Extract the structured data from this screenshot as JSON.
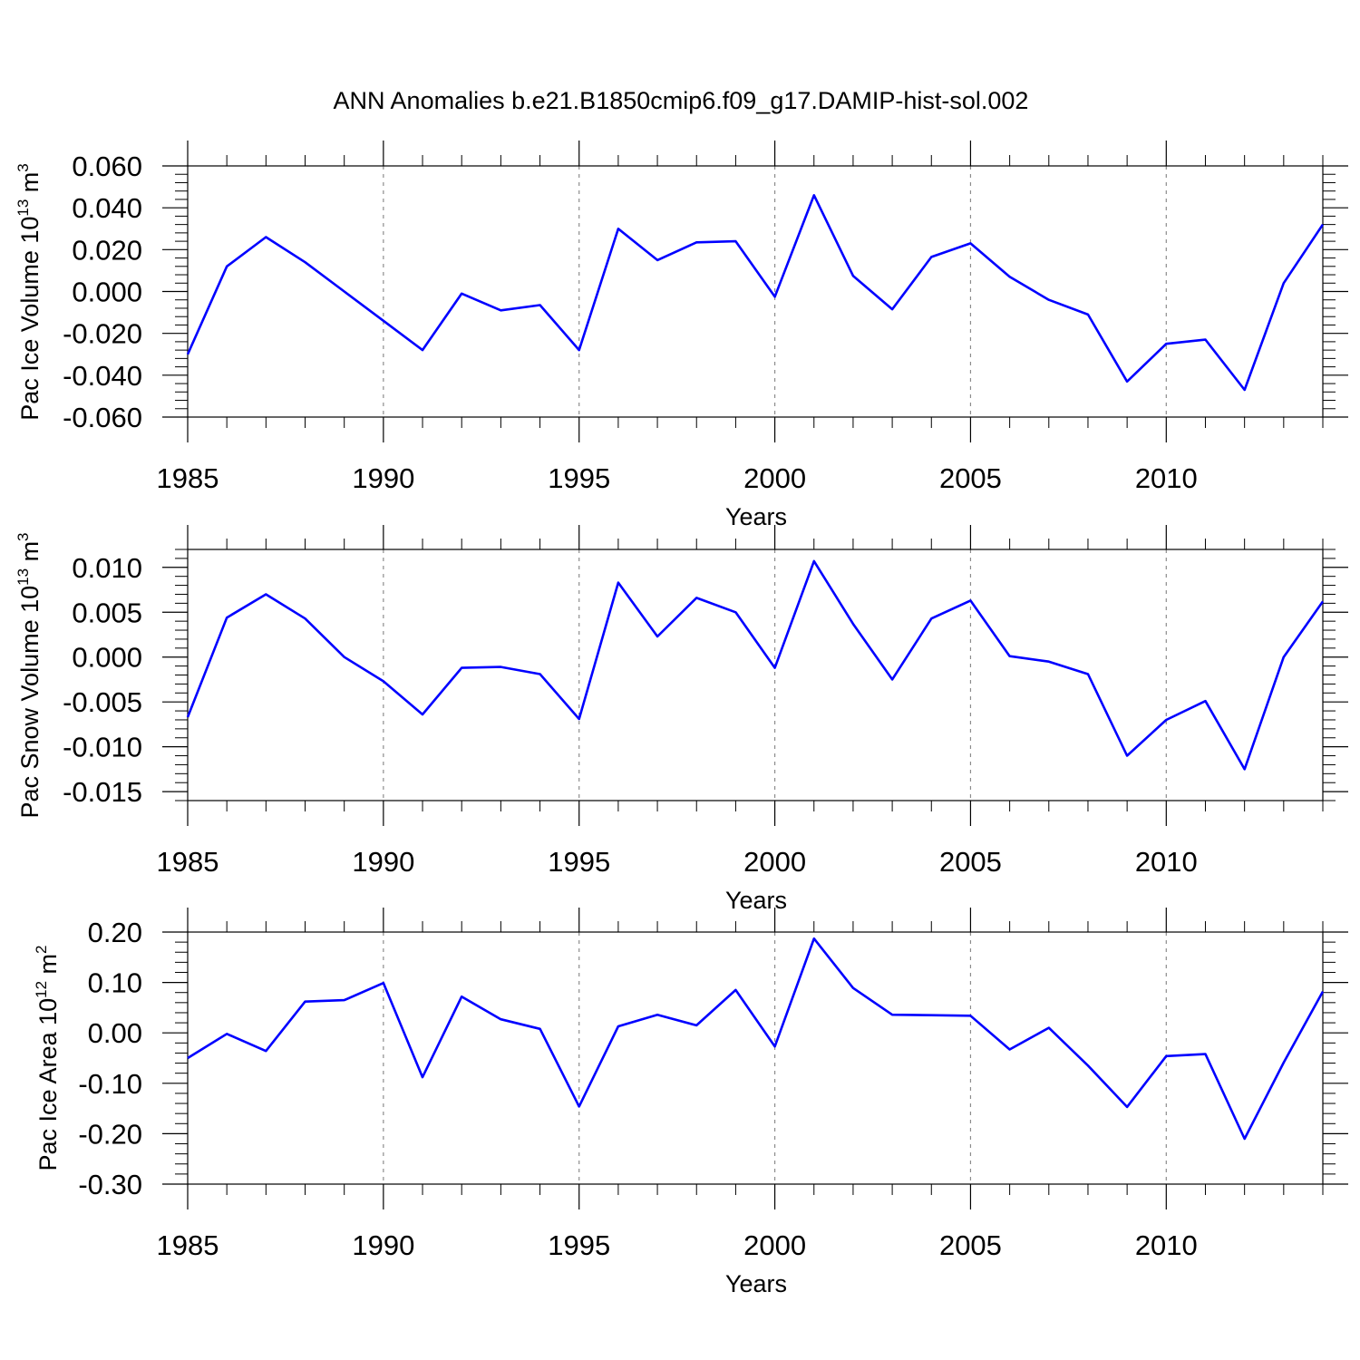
{
  "title": "ANN Anomalies b.e21.B1850cmip6.f09_g17.DAMIP-hist-sol.002",
  "colors": {
    "line": "#0000ff",
    "axis": "#000000",
    "grid": "#8c8c8c"
  },
  "chart_data": [
    {
      "type": "line",
      "ylabel": "Pac Ice Volume 10",
      "ylabel_sup": "13",
      "ylabel_unit": " m",
      "ylabel_unit_sup": "3",
      "xlabel": "Years",
      "xlim": [
        1985,
        2014
      ],
      "ylim": [
        -0.06,
        0.06
      ],
      "yticks": [
        -0.06,
        -0.04,
        -0.02,
        0.0,
        0.02,
        0.04,
        0.06
      ],
      "ytick_labels": [
        "-0.060",
        "-0.040",
        "-0.020",
        "0.000",
        "0.020",
        "0.040",
        "0.060"
      ],
      "xticks": [
        1985,
        1990,
        1995,
        2000,
        2005,
        2010
      ],
      "xtick_labels": [
        "1985",
        "1990",
        "1995",
        "2000",
        "2005",
        "2010"
      ],
      "grid": "x-dashed",
      "x": [
        1985,
        1986,
        1987,
        1988,
        1989,
        1990,
        1991,
        1992,
        1993,
        1994,
        1995,
        1996,
        1997,
        1998,
        1999,
        2000,
        2001,
        2002,
        2003,
        2004,
        2005,
        2006,
        2007,
        2008,
        2009,
        2010,
        2011,
        2012,
        2013,
        2014
      ],
      "y": [
        -0.03,
        0.012,
        0.026,
        0.014,
        0.0,
        -0.014,
        -0.028,
        -0.001,
        -0.009,
        -0.0065,
        -0.028,
        0.03,
        0.015,
        0.0235,
        0.024,
        -0.0025,
        0.046,
        0.0075,
        -0.0085,
        0.0165,
        0.023,
        0.007,
        -0.004,
        -0.011,
        -0.043,
        -0.025,
        -0.023,
        -0.047,
        0.004,
        0.032
      ]
    },
    {
      "type": "line",
      "ylabel": "Pac Snow Volume 10",
      "ylabel_sup": "13",
      "ylabel_unit": " m",
      "ylabel_unit_sup": "3",
      "xlabel": "Years",
      "xlim": [
        1985,
        2014
      ],
      "ylim": [
        -0.016,
        0.012
      ],
      "yticks": [
        -0.015,
        -0.01,
        -0.005,
        0.0,
        0.005,
        0.01
      ],
      "ytick_labels": [
        "-0.015",
        "-0.010",
        "-0.005",
        "0.000",
        "0.005",
        "0.010"
      ],
      "xticks": [
        1985,
        1990,
        1995,
        2000,
        2005,
        2010
      ],
      "xtick_labels": [
        "1985",
        "1990",
        "1995",
        "2000",
        "2005",
        "2010"
      ],
      "grid": "x-dashed",
      "x": [
        1985,
        1986,
        1987,
        1988,
        1989,
        1990,
        1991,
        1992,
        1993,
        1994,
        1995,
        1996,
        1997,
        1998,
        1999,
        2000,
        2001,
        2002,
        2003,
        2004,
        2005,
        2006,
        2007,
        2008,
        2009,
        2010,
        2011,
        2012,
        2013,
        2014
      ],
      "y": [
        -0.0067,
        0.0044,
        0.007,
        0.0043,
        0.0,
        -0.0027,
        -0.0064,
        -0.0012,
        -0.0011,
        -0.0019,
        -0.0069,
        0.0083,
        0.0023,
        0.0066,
        0.005,
        -0.0012,
        0.0107,
        0.0037,
        -0.0025,
        0.0043,
        0.0063,
        0.0001,
        -0.0005,
        -0.0019,
        -0.011,
        -0.007,
        -0.0049,
        -0.0125,
        0.0,
        0.0062
      ]
    },
    {
      "type": "line",
      "ylabel": "Pac Ice Area 10",
      "ylabel_sup": "12",
      "ylabel_unit": " m",
      "ylabel_unit_sup": "2",
      "xlabel": "Years",
      "xlim": [
        1985,
        2014
      ],
      "ylim": [
        -0.3,
        0.2
      ],
      "yticks": [
        -0.3,
        -0.2,
        -0.1,
        0.0,
        0.1,
        0.2
      ],
      "ytick_labels": [
        "-0.30",
        "-0.20",
        "-0.10",
        "0.00",
        "0.10",
        "0.20"
      ],
      "xticks": [
        1985,
        1990,
        1995,
        2000,
        2005,
        2010
      ],
      "xtick_labels": [
        "1985",
        "1990",
        "1995",
        "2000",
        "2005",
        "2010"
      ],
      "grid": "x-dashed",
      "x": [
        1985,
        1986,
        1987,
        1988,
        1989,
        1990,
        1991,
        1992,
        1993,
        1994,
        1995,
        1996,
        1997,
        1998,
        1999,
        2000,
        2001,
        2002,
        2003,
        2004,
        2005,
        2006,
        2007,
        2008,
        2009,
        2010,
        2011,
        2012,
        2013,
        2014
      ],
      "y": [
        -0.05,
        -0.002,
        -0.036,
        0.062,
        0.065,
        0.099,
        -0.088,
        0.072,
        0.027,
        0.008,
        -0.146,
        0.013,
        0.036,
        0.015,
        0.085,
        -0.027,
        0.187,
        0.089,
        0.036,
        0.035,
        0.034,
        -0.033,
        0.01,
        -0.065,
        -0.147,
        -0.046,
        -0.042,
        -0.21,
        -0.059,
        0.082
      ]
    }
  ]
}
